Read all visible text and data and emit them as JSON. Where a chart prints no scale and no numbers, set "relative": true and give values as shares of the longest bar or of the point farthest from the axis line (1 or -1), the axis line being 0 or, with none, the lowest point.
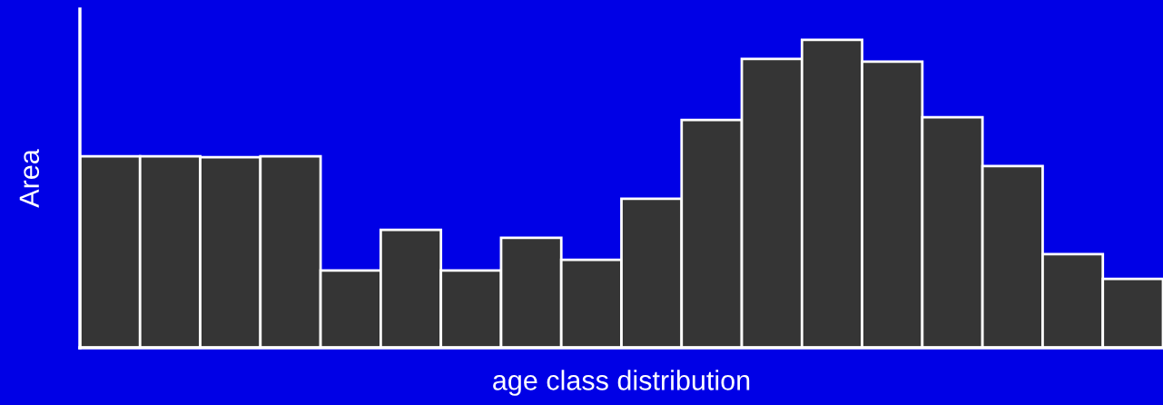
{
  "chart_data": {
    "type": "bar",
    "relative": true,
    "xlabel": "age class distribution",
    "ylabel": "Area",
    "categories": [
      null,
      null,
      null,
      null,
      null,
      null,
      null,
      null,
      null,
      null,
      null,
      null,
      null,
      null,
      null,
      null,
      null,
      null
    ],
    "series": [
      {
        "color": "#353535",
        "values": [
          0.622,
          0.622,
          0.619,
          0.622,
          0.251,
          0.383,
          0.251,
          0.357,
          0.286,
          0.484,
          0.74,
          0.938,
          1,
          0.929,
          0.749,
          0.59,
          0.304,
          0.224
        ]
      }
    ],
    "grid": false,
    "legend": false
  }
}
